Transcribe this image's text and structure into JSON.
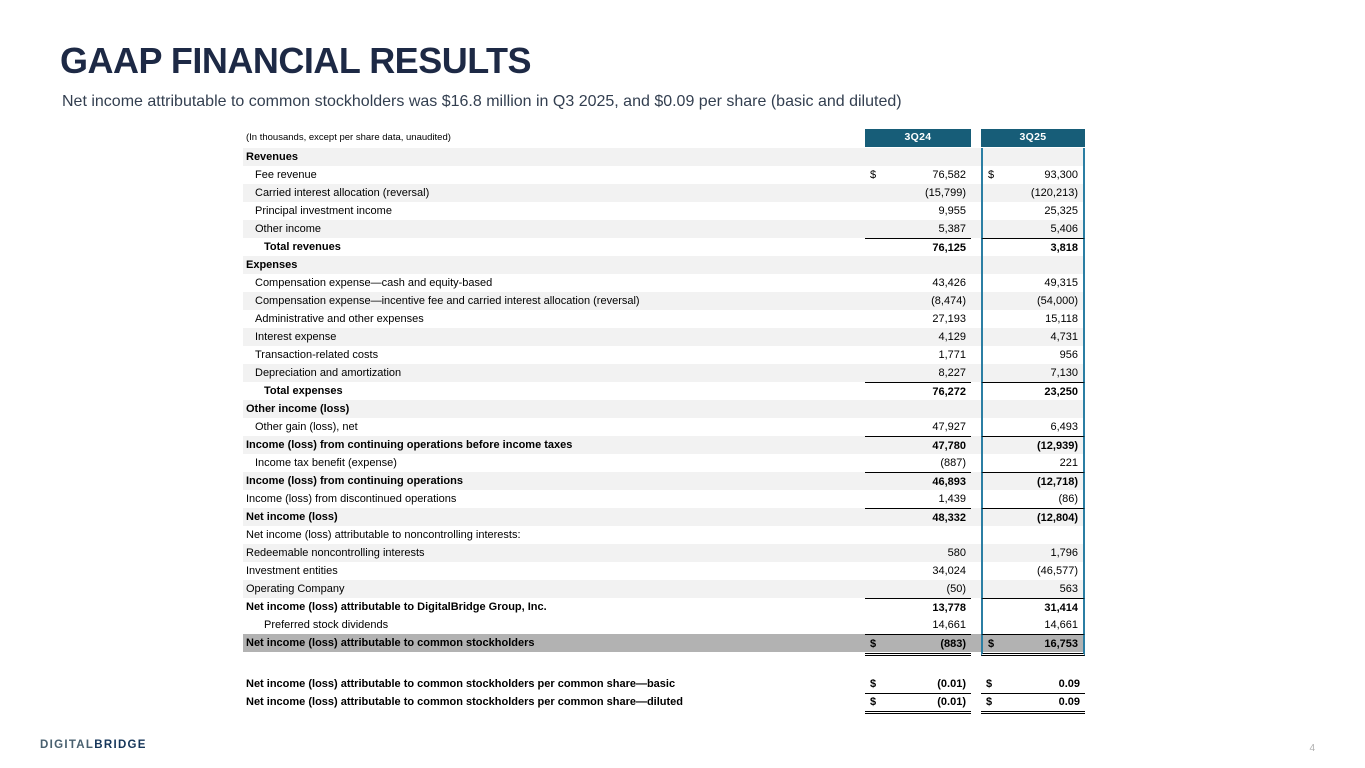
{
  "slide": {
    "title": "GAAP FINANCIAL RESULTS",
    "subtitle": "Net income attributable to common stockholders was $16.8 million in Q3 2025, and $0.09 per share (basic and diluted)",
    "page_number": "4",
    "logo_digital": "DIGITAL",
    "logo_bridge": "BRIDGE"
  },
  "colors": {
    "header_teal": "#175d78",
    "column_outline": "#2b7ea3",
    "stripe": "#f2f2f2",
    "highlight": "#b2b2b2",
    "title_navy": "#1d2945"
  },
  "table": {
    "note": "(In thousands, except per share data, unaudited)",
    "columns": [
      "3Q24",
      "3Q25"
    ],
    "rows": [
      {
        "label": "Revenues",
        "bold": true,
        "indent": 0,
        "stripe": true
      },
      {
        "label": "Fee revenue",
        "indent": 1,
        "d1": "$",
        "v1": "76,582",
        "d2": "$",
        "v2": "93,300"
      },
      {
        "label": "Carried interest allocation (reversal)",
        "indent": 1,
        "stripe": true,
        "v1": "(15,799)",
        "v2": "(120,213)"
      },
      {
        "label": "Principal investment income",
        "indent": 1,
        "v1": "9,955",
        "v2": "25,325"
      },
      {
        "label": "Other income",
        "indent": 1,
        "stripe": true,
        "v1": "5,387",
        "v2": "5,406"
      },
      {
        "label": "Total revenues",
        "bold": true,
        "indent": 2,
        "v1": "76,125",
        "v2": "3,818",
        "top": true
      },
      {
        "label": "Expenses",
        "bold": true,
        "indent": 0,
        "stripe": true
      },
      {
        "label": "Compensation expense—cash and equity-based",
        "indent": 1,
        "v1": "43,426",
        "v2": "49,315"
      },
      {
        "label": "Compensation expense—incentive fee and carried interest allocation (reversal)",
        "indent": 1,
        "stripe": true,
        "v1": "(8,474)",
        "v2": "(54,000)"
      },
      {
        "label": "Administrative and other expenses",
        "indent": 1,
        "v1": "27,193",
        "v2": "15,118"
      },
      {
        "label": "Interest expense",
        "indent": 1,
        "stripe": true,
        "v1": "4,129",
        "v2": "4,731"
      },
      {
        "label": "Transaction-related costs",
        "indent": 1,
        "v1": "1,771",
        "v2": "956"
      },
      {
        "label": "Depreciation and amortization",
        "indent": 1,
        "stripe": true,
        "v1": "8,227",
        "v2": "7,130"
      },
      {
        "label": "Total expenses",
        "bold": true,
        "indent": 2,
        "v1": "76,272",
        "v2": "23,250",
        "top": true
      },
      {
        "label": "Other income (loss)",
        "bold": true,
        "indent": 0,
        "stripe": true
      },
      {
        "label": "Other gain (loss), net",
        "indent": 1,
        "v1": "47,927",
        "v2": "6,493"
      },
      {
        "label": "Income (loss) from continuing operations before income taxes",
        "bold": true,
        "indent": 0,
        "stripe": true,
        "v1": "47,780",
        "v2": "(12,939)",
        "top": true
      },
      {
        "label": "Income tax benefit (expense)",
        "indent": 1,
        "v1": "(887)",
        "v2": "221"
      },
      {
        "label": "Income (loss) from continuing operations",
        "bold": true,
        "indent": 0,
        "stripe": true,
        "v1": "46,893",
        "v2": "(12,718)",
        "top": true
      },
      {
        "label": "Income (loss) from discontinued operations",
        "indent": 0,
        "v1": "1,439",
        "v2": "(86)"
      },
      {
        "label": "Net income (loss)",
        "bold": true,
        "indent": 0,
        "stripe": true,
        "v1": "48,332",
        "v2": "(12,804)",
        "top": true
      },
      {
        "label": "Net income (loss) attributable to noncontrolling interests:",
        "indent": 0
      },
      {
        "label": "Redeemable noncontrolling interests",
        "indent": 0,
        "stripe": true,
        "v1": "580",
        "v2": "1,796"
      },
      {
        "label": "Investment entities",
        "indent": 0,
        "v1": "34,024",
        "v2": "(46,577)"
      },
      {
        "label": "Operating Company",
        "indent": 0,
        "stripe": true,
        "v1": "(50)",
        "v2": "563"
      },
      {
        "label": "Net income (loss) attributable to DigitalBridge Group, Inc.",
        "bold": true,
        "indent": 0,
        "v1": "13,778",
        "v2": "31,414",
        "top": true
      },
      {
        "label": "Preferred stock dividends",
        "indent": 2,
        "v1": "14,661",
        "v2": "14,661"
      },
      {
        "label": "Net income (loss) attributable to common stockholders",
        "bold": true,
        "indent": 0,
        "highlight": true,
        "d1": "$",
        "v1": "(883)",
        "d2": "$",
        "v2": "16,753",
        "top": true,
        "doubleBottom": true
      },
      {
        "label": "",
        "spacer": true,
        "noBox": true
      },
      {
        "label": "Net income (loss) attributable to common stockholders per common share—basic",
        "bold": true,
        "indent": 0,
        "noBox": true,
        "d1": "$",
        "v1": "(0.01)",
        "d2": "$",
        "v2": "0.09",
        "bottom": true
      },
      {
        "label": "Net income (loss) attributable to common stockholders per common share—diluted",
        "bold": true,
        "indent": 0,
        "noBox": true,
        "d1": "$",
        "v1": "(0.01)",
        "d2": "$",
        "v2": "0.09",
        "doubleBottom": true
      }
    ]
  }
}
